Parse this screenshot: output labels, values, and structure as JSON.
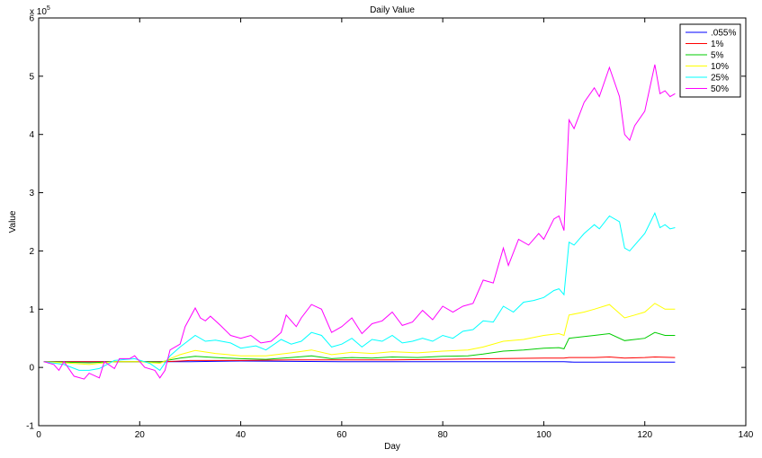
{
  "chart_data": {
    "type": "line",
    "title": "Daily Value",
    "xlabel": "Day",
    "ylabel": "Value",
    "y_exponent_label": "x 10",
    "y_exponent_power": "5",
    "xlim": [
      0,
      140
    ],
    "ylim": [
      -1,
      6
    ],
    "y_scale_factor": 100000,
    "xticks": [
      0,
      20,
      40,
      60,
      80,
      100,
      120,
      140
    ],
    "yticks": [
      -1,
      0,
      1,
      2,
      3,
      4,
      5,
      6
    ],
    "grid": false,
    "legend_position": "top-right",
    "series": [
      {
        "name": ".055%",
        "color": "#0000ff",
        "points": [
          [
            1,
            0.1
          ],
          [
            10,
            0.1
          ],
          [
            20,
            0.1
          ],
          [
            25,
            0.1
          ],
          [
            30,
            0.1
          ],
          [
            40,
            0.11
          ],
          [
            60,
            0.1
          ],
          [
            80,
            0.1
          ],
          [
            100,
            0.1
          ],
          [
            104,
            0.1
          ],
          [
            106,
            0.09
          ],
          [
            110,
            0.09
          ],
          [
            115,
            0.09
          ],
          [
            120,
            0.09
          ],
          [
            126,
            0.09
          ]
        ]
      },
      {
        "name": "1%",
        "color": "#ff0000",
        "points": [
          [
            1,
            0.1
          ],
          [
            10,
            0.1
          ],
          [
            20,
            0.1
          ],
          [
            25,
            0.1
          ],
          [
            28,
            0.11
          ],
          [
            30,
            0.12
          ],
          [
            40,
            0.12
          ],
          [
            50,
            0.13
          ],
          [
            60,
            0.13
          ],
          [
            70,
            0.13
          ],
          [
            80,
            0.14
          ],
          [
            90,
            0.15
          ],
          [
            100,
            0.16
          ],
          [
            104,
            0.16
          ],
          [
            105,
            0.17
          ],
          [
            110,
            0.17
          ],
          [
            113,
            0.18
          ],
          [
            116,
            0.16
          ],
          [
            120,
            0.17
          ],
          [
            122,
            0.18
          ],
          [
            126,
            0.17
          ]
        ]
      },
      {
        "name": "5%",
        "color": "#00cc00",
        "points": [
          [
            1,
            0.1
          ],
          [
            5,
            0.09
          ],
          [
            10,
            0.08
          ],
          [
            15,
            0.1
          ],
          [
            20,
            0.1
          ],
          [
            24,
            0.09
          ],
          [
            26,
            0.13
          ],
          [
            28,
            0.16
          ],
          [
            31,
            0.19
          ],
          [
            35,
            0.17
          ],
          [
            40,
            0.15
          ],
          [
            45,
            0.14
          ],
          [
            50,
            0.17
          ],
          [
            54,
            0.2
          ],
          [
            58,
            0.15
          ],
          [
            62,
            0.17
          ],
          [
            66,
            0.16
          ],
          [
            70,
            0.18
          ],
          [
            75,
            0.17
          ],
          [
            80,
            0.19
          ],
          [
            85,
            0.2
          ],
          [
            88,
            0.23
          ],
          [
            92,
            0.28
          ],
          [
            96,
            0.3
          ],
          [
            100,
            0.33
          ],
          [
            103,
            0.34
          ],
          [
            104,
            0.32
          ],
          [
            105,
            0.5
          ],
          [
            108,
            0.53
          ],
          [
            110,
            0.55
          ],
          [
            113,
            0.58
          ],
          [
            116,
            0.46
          ],
          [
            118,
            0.48
          ],
          [
            120,
            0.5
          ],
          [
            122,
            0.6
          ],
          [
            124,
            0.55
          ],
          [
            126,
            0.55
          ]
        ]
      },
      {
        "name": "10%",
        "color": "#ffff00",
        "points": [
          [
            1,
            0.1
          ],
          [
            5,
            0.08
          ],
          [
            10,
            0.05
          ],
          [
            15,
            0.1
          ],
          [
            20,
            0.1
          ],
          [
            24,
            0.07
          ],
          [
            26,
            0.15
          ],
          [
            28,
            0.22
          ],
          [
            31,
            0.29
          ],
          [
            35,
            0.24
          ],
          [
            40,
            0.2
          ],
          [
            45,
            0.2
          ],
          [
            50,
            0.25
          ],
          [
            54,
            0.3
          ],
          [
            58,
            0.22
          ],
          [
            62,
            0.26
          ],
          [
            66,
            0.24
          ],
          [
            70,
            0.27
          ],
          [
            75,
            0.25
          ],
          [
            80,
            0.28
          ],
          [
            85,
            0.3
          ],
          [
            88,
            0.35
          ],
          [
            92,
            0.45
          ],
          [
            96,
            0.48
          ],
          [
            100,
            0.55
          ],
          [
            103,
            0.58
          ],
          [
            104,
            0.55
          ],
          [
            105,
            0.9
          ],
          [
            108,
            0.95
          ],
          [
            110,
            1.0
          ],
          [
            113,
            1.08
          ],
          [
            116,
            0.85
          ],
          [
            118,
            0.9
          ],
          [
            120,
            0.95
          ],
          [
            122,
            1.1
          ],
          [
            124,
            1.0
          ],
          [
            126,
            1.0
          ]
        ]
      },
      {
        "name": "25%",
        "color": "#00ffff",
        "points": [
          [
            1,
            0.1
          ],
          [
            5,
            0.05
          ],
          [
            8,
            -0.05
          ],
          [
            10,
            -0.05
          ],
          [
            12,
            -0.02
          ],
          [
            15,
            0.12
          ],
          [
            19,
            0.15
          ],
          [
            22,
            0.07
          ],
          [
            24,
            -0.05
          ],
          [
            26,
            0.2
          ],
          [
            28,
            0.35
          ],
          [
            31,
            0.55
          ],
          [
            33,
            0.45
          ],
          [
            35,
            0.47
          ],
          [
            38,
            0.42
          ],
          [
            40,
            0.33
          ],
          [
            43,
            0.37
          ],
          [
            45,
            0.3
          ],
          [
            48,
            0.48
          ],
          [
            50,
            0.4
          ],
          [
            52,
            0.45
          ],
          [
            54,
            0.6
          ],
          [
            56,
            0.55
          ],
          [
            58,
            0.35
          ],
          [
            60,
            0.4
          ],
          [
            62,
            0.5
          ],
          [
            64,
            0.35
          ],
          [
            66,
            0.48
          ],
          [
            68,
            0.45
          ],
          [
            70,
            0.55
          ],
          [
            72,
            0.42
          ],
          [
            74,
            0.45
          ],
          [
            76,
            0.5
          ],
          [
            78,
            0.45
          ],
          [
            80,
            0.55
          ],
          [
            82,
            0.5
          ],
          [
            84,
            0.62
          ],
          [
            86,
            0.65
          ],
          [
            88,
            0.8
          ],
          [
            90,
            0.78
          ],
          [
            92,
            1.05
          ],
          [
            94,
            0.95
          ],
          [
            96,
            1.12
          ],
          [
            98,
            1.15
          ],
          [
            100,
            1.2
          ],
          [
            102,
            1.32
          ],
          [
            103,
            1.35
          ],
          [
            104,
            1.25
          ],
          [
            105,
            2.15
          ],
          [
            106,
            2.1
          ],
          [
            108,
            2.3
          ],
          [
            110,
            2.45
          ],
          [
            111,
            2.38
          ],
          [
            113,
            2.6
          ],
          [
            115,
            2.5
          ],
          [
            116,
            2.05
          ],
          [
            117,
            2.0
          ],
          [
            118,
            2.1
          ],
          [
            120,
            2.3
          ],
          [
            122,
            2.65
          ],
          [
            123,
            2.4
          ],
          [
            124,
            2.45
          ],
          [
            125,
            2.38
          ],
          [
            126,
            2.4
          ]
        ]
      },
      {
        "name": "50%",
        "color": "#ff00ff",
        "points": [
          [
            1,
            0.1
          ],
          [
            3,
            0.05
          ],
          [
            4,
            -0.05
          ],
          [
            5,
            0.1
          ],
          [
            7,
            -0.15
          ],
          [
            9,
            -0.2
          ],
          [
            10,
            -0.1
          ],
          [
            12,
            -0.18
          ],
          [
            13,
            0.1
          ],
          [
            15,
            -0.02
          ],
          [
            16,
            0.15
          ],
          [
            18,
            0.15
          ],
          [
            19,
            0.2
          ],
          [
            21,
            0.0
          ],
          [
            23,
            -0.05
          ],
          [
            24,
            -0.18
          ],
          [
            25,
            -0.05
          ],
          [
            26,
            0.3
          ],
          [
            28,
            0.4
          ],
          [
            29,
            0.7
          ],
          [
            31,
            1.02
          ],
          [
            32,
            0.85
          ],
          [
            33,
            0.8
          ],
          [
            34,
            0.88
          ],
          [
            36,
            0.72
          ],
          [
            38,
            0.55
          ],
          [
            40,
            0.5
          ],
          [
            42,
            0.55
          ],
          [
            44,
            0.42
          ],
          [
            46,
            0.45
          ],
          [
            48,
            0.6
          ],
          [
            49,
            0.9
          ],
          [
            51,
            0.7
          ],
          [
            52,
            0.85
          ],
          [
            54,
            1.08
          ],
          [
            56,
            1.0
          ],
          [
            58,
            0.6
          ],
          [
            60,
            0.7
          ],
          [
            62,
            0.85
          ],
          [
            64,
            0.58
          ],
          [
            66,
            0.75
          ],
          [
            68,
            0.8
          ],
          [
            70,
            0.95
          ],
          [
            72,
            0.72
          ],
          [
            74,
            0.78
          ],
          [
            76,
            0.98
          ],
          [
            78,
            0.82
          ],
          [
            80,
            1.05
          ],
          [
            82,
            0.95
          ],
          [
            84,
            1.05
          ],
          [
            86,
            1.1
          ],
          [
            88,
            1.5
          ],
          [
            90,
            1.45
          ],
          [
            92,
            2.05
          ],
          [
            93,
            1.75
          ],
          [
            95,
            2.2
          ],
          [
            97,
            2.1
          ],
          [
            99,
            2.3
          ],
          [
            100,
            2.2
          ],
          [
            102,
            2.55
          ],
          [
            103,
            2.6
          ],
          [
            104,
            2.35
          ],
          [
            105,
            4.25
          ],
          [
            106,
            4.1
          ],
          [
            108,
            4.55
          ],
          [
            110,
            4.8
          ],
          [
            111,
            4.65
          ],
          [
            113,
            5.15
          ],
          [
            115,
            4.65
          ],
          [
            116,
            4.0
          ],
          [
            117,
            3.9
          ],
          [
            118,
            4.15
          ],
          [
            120,
            4.4
          ],
          [
            122,
            5.2
          ],
          [
            123,
            4.7
          ],
          [
            124,
            4.75
          ],
          [
            125,
            4.65
          ],
          [
            126,
            4.7
          ]
        ]
      }
    ]
  }
}
